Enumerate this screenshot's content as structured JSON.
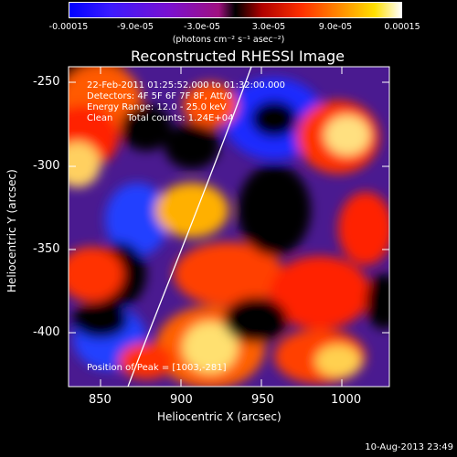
{
  "colorbar": {
    "ticks": [
      "-0.00015",
      "-9.0e-05",
      "-3.0e-05",
      "3.0e-05",
      "9.0e-05",
      "0.00015"
    ],
    "units": "(photons cm⁻² s⁻¹ asec⁻²)"
  },
  "chart_data": {
    "type": "heatmap",
    "title": "Reconstructed RHESSI Image",
    "xlabel": "Heliocentric X (arcsec)",
    "ylabel": "Heliocentric Y (arcsec)",
    "xlim": [
      830,
      1025
    ],
    "ylim": [
      -432,
      -240
    ],
    "xticks": [
      "850",
      "900",
      "950",
      "1000"
    ],
    "yticks": [
      "-250",
      "-300",
      "-350",
      "-400"
    ],
    "colorbar_range": [
      -0.00015,
      0.00015
    ],
    "annotations": [
      "22-Feb-2011 01:25:52.000 to 01:32:00.000",
      "Detectors: 4F 5F 6F 7F 8F, Att/0",
      "Energy Range: 12.0 - 25.0 keV",
      "Clean     Total counts: 1.24E+04",
      "Position of Peak = [1003,-281]"
    ],
    "peak": [
      1003,
      -281
    ]
  },
  "timestamp": "10-Aug-2013 23:49"
}
